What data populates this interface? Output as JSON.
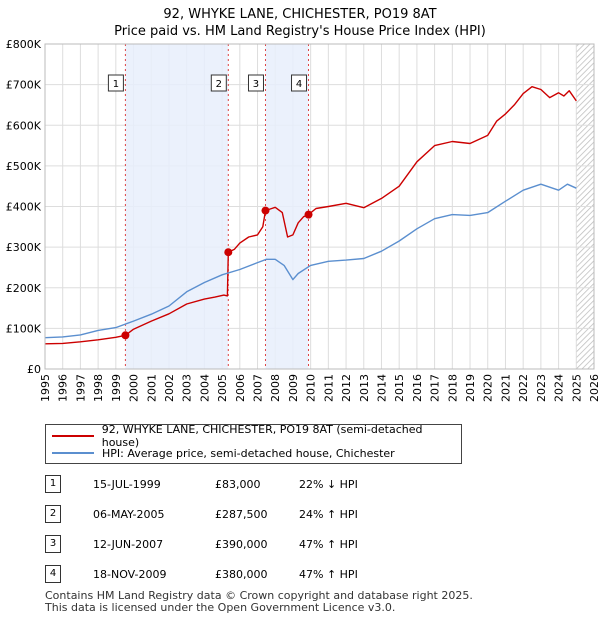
{
  "title_line1": "92, WHYKE LANE, CHICHESTER, PO19 8AT",
  "title_line2": "Price paid vs. HM Land Registry's House Price Index (HPI)",
  "chart_data": {
    "type": "line",
    "xlim": [
      1995,
      2026
    ],
    "ylim": [
      0,
      800000
    ],
    "x_ticks": [
      1995,
      1996,
      1997,
      1998,
      1999,
      2000,
      2001,
      2002,
      2003,
      2004,
      2005,
      2006,
      2007,
      2008,
      2009,
      2010,
      2011,
      2012,
      2013,
      2014,
      2015,
      2016,
      2017,
      2018,
      2019,
      2020,
      2021,
      2022,
      2023,
      2024,
      2025,
      2026
    ],
    "y_ticks": [
      0,
      100000,
      200000,
      300000,
      400000,
      500000,
      600000,
      700000,
      800000
    ],
    "y_tick_labels": [
      "£0",
      "£100K",
      "£200K",
      "£300K",
      "£400K",
      "£500K",
      "£600K",
      "£700K",
      "£800K"
    ],
    "grid": true,
    "shaded_spans": [
      [
        1999.54,
        2005.35
      ],
      [
        2007.45,
        2009.88
      ]
    ],
    "hatched_after": 2025.0,
    "series": [
      {
        "name": "92, WHYKE LANE, CHICHESTER, PO19 8AT (semi-detached house)",
        "color": "#cc0000",
        "x": [
          1995,
          1996,
          1997,
          1998,
          1999,
          1999.54,
          2000,
          2001,
          2002,
          2003,
          2004,
          2004.6,
          2005.1,
          2005.3,
          2005.35,
          2005.7,
          2006,
          2006.5,
          2007,
          2007.3,
          2007.45,
          2007.8,
          2008,
          2008.4,
          2008.7,
          2009,
          2009.3,
          2009.6,
          2009.88,
          2010.3,
          2011,
          2012,
          2013,
          2014,
          2015,
          2016,
          2017,
          2018,
          2019,
          2020,
          2020.5,
          2021,
          2021.5,
          2022,
          2022.5,
          2023,
          2023.5,
          2024,
          2024.3,
          2024.6,
          2025
        ],
        "y": [
          62000,
          63000,
          67000,
          72000,
          78000,
          83000,
          98000,
          118000,
          136000,
          160000,
          172000,
          177000,
          182000,
          180000,
          287500,
          295000,
          310000,
          325000,
          330000,
          350000,
          390000,
          395000,
          398000,
          385000,
          325000,
          330000,
          360000,
          375000,
          380000,
          395000,
          400000,
          408000,
          397000,
          420000,
          450000,
          510000,
          550000,
          560000,
          555000,
          575000,
          610000,
          628000,
          650000,
          678000,
          695000,
          688000,
          668000,
          680000,
          672000,
          685000,
          660000
        ]
      },
      {
        "name": "HPI: Average price, semi-detached house, Chichester",
        "color": "#5b8fcf",
        "x": [
          1995,
          1996,
          1997,
          1998,
          1999,
          2000,
          2001,
          2002,
          2003,
          2004,
          2005,
          2006,
          2007,
          2007.5,
          2008,
          2008.5,
          2009,
          2009.3,
          2010,
          2011,
          2012,
          2013,
          2014,
          2015,
          2016,
          2017,
          2018,
          2019,
          2020,
          2021,
          2022,
          2023,
          2024,
          2024.5,
          2025
        ],
        "y": [
          77000,
          79000,
          84000,
          95000,
          102000,
          118000,
          135000,
          155000,
          190000,
          213000,
          232000,
          245000,
          262000,
          270000,
          270000,
          255000,
          220000,
          235000,
          255000,
          265000,
          268000,
          272000,
          290000,
          315000,
          345000,
          370000,
          380000,
          378000,
          385000,
          413000,
          440000,
          455000,
          440000,
          455000,
          445000
        ]
      }
    ],
    "sales": [
      {
        "num": "1",
        "date": "15-JUL-1999",
        "x": 1999.54,
        "price": 83000,
        "price_label": "£83,000",
        "hpi": "22% ↓ HPI"
      },
      {
        "num": "2",
        "date": "06-MAY-2005",
        "x": 2005.35,
        "price": 287500,
        "price_label": "£287,500",
        "hpi": "24% ↑ HPI"
      },
      {
        "num": "3",
        "date": "12-JUN-2007",
        "x": 2007.45,
        "price": 390000,
        "price_label": "£390,000",
        "hpi": "47% ↑ HPI"
      },
      {
        "num": "4",
        "date": "18-NOV-2009",
        "x": 2009.88,
        "price": 380000,
        "price_label": "£380,000",
        "hpi": "47% ↑ HPI"
      }
    ]
  },
  "legend": {
    "property": "92, WHYKE LANE, CHICHESTER, PO19 8AT (semi-detached house)",
    "hpi": "HPI: Average price, semi-detached house, Chichester"
  },
  "footer_line1": "Contains HM Land Registry data © Crown copyright and database right 2025.",
  "footer_line2": "This data is licensed under the Open Government Licence v3.0."
}
